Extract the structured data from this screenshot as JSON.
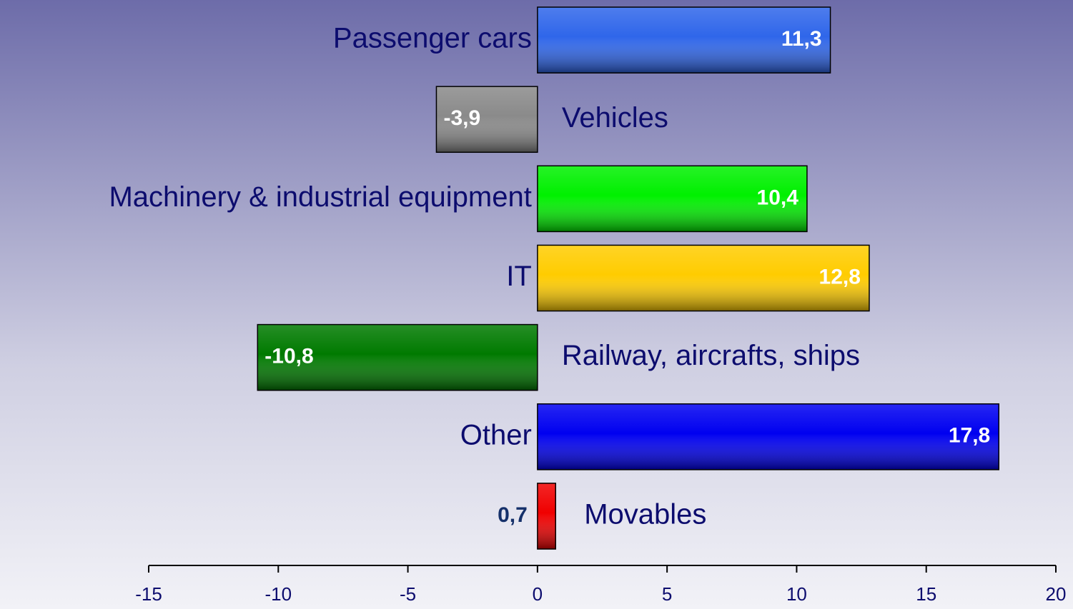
{
  "chart_data": {
    "type": "bar",
    "orientation": "horizontal",
    "categories": [
      "Passenger cars",
      "Vehicles",
      "Machinery & industrial equipment",
      "IT",
      "Railway, aircrafts, ships",
      "Other",
      "Movables"
    ],
    "values": [
      11.3,
      -3.9,
      10.4,
      12.8,
      -10.8,
      17.8,
      0.7
    ],
    "value_labels": [
      "11,3",
      "-3,9",
      "10,4",
      "12,8",
      "-10,8",
      "17,8",
      "0,7"
    ],
    "colors": [
      "#2f66ea",
      "#8a8a8a",
      "#00f000",
      "#ffcc00",
      "#007a00",
      "#0000f0",
      "#f00000"
    ],
    "xlim": [
      -15,
      20
    ],
    "xticks": [
      -15,
      -10,
      -5,
      0,
      5,
      10,
      15,
      20
    ]
  }
}
